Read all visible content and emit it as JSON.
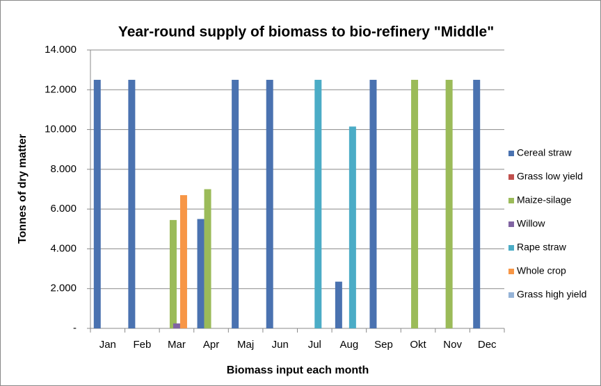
{
  "chart_data": {
    "type": "bar",
    "title": "Year-round supply of biomass to bio-refinery \"Middle\"",
    "x_label": "Biomass input each month",
    "y_label": "Tonnes of dry matter",
    "categories": [
      "Jan",
      "Feb",
      "Mar",
      "Apr",
      "Maj",
      "Jun",
      "Jul",
      "Aug",
      "Sep",
      "Okt",
      "Nov",
      "Dec"
    ],
    "series": [
      {
        "name": "Cereal straw",
        "color": "#4a72b0",
        "values": [
          12500,
          12500,
          0,
          5500,
          12500,
          12500,
          0,
          2350,
          12500,
          0,
          0,
          12500
        ]
      },
      {
        "name": "Grass low yield",
        "color": "#c0504d",
        "values": [
          0,
          0,
          0,
          0,
          0,
          0,
          0,
          0,
          0,
          0,
          0,
          0
        ]
      },
      {
        "name": "Maize-silage",
        "color": "#9bbb59",
        "values": [
          0,
          0,
          5450,
          7000,
          0,
          0,
          0,
          0,
          0,
          12500,
          12500,
          0
        ]
      },
      {
        "name": "Willow",
        "color": "#8064a2",
        "values": [
          0,
          0,
          250,
          0,
          0,
          0,
          0,
          0,
          0,
          0,
          0,
          0
        ]
      },
      {
        "name": "Rape straw",
        "color": "#4bacc6",
        "values": [
          0,
          0,
          0,
          0,
          0,
          0,
          12500,
          10150,
          0,
          0,
          0,
          0
        ]
      },
      {
        "name": "Whole crop",
        "color": "#f79646",
        "values": [
          0,
          0,
          6700,
          0,
          0,
          0,
          0,
          0,
          0,
          0,
          0,
          0
        ]
      },
      {
        "name": "Grass high yield",
        "color": "#95b3d7",
        "values": [
          0,
          0,
          0,
          0,
          0,
          0,
          0,
          0,
          0,
          0,
          0,
          0
        ]
      }
    ],
    "ylim": [
      0,
      14000
    ],
    "yticks": [
      {
        "value": 0,
        "label": "-"
      },
      {
        "value": 2000,
        "label": "2.000"
      },
      {
        "value": 4000,
        "label": "4.000"
      },
      {
        "value": 6000,
        "label": "6.000"
      },
      {
        "value": 8000,
        "label": "8.000"
      },
      {
        "value": 10000,
        "label": "10.000"
      },
      {
        "value": 12000,
        "label": "12.000"
      },
      {
        "value": 14000,
        "label": "14.000"
      }
    ],
    "grid": true,
    "legend": "right"
  }
}
